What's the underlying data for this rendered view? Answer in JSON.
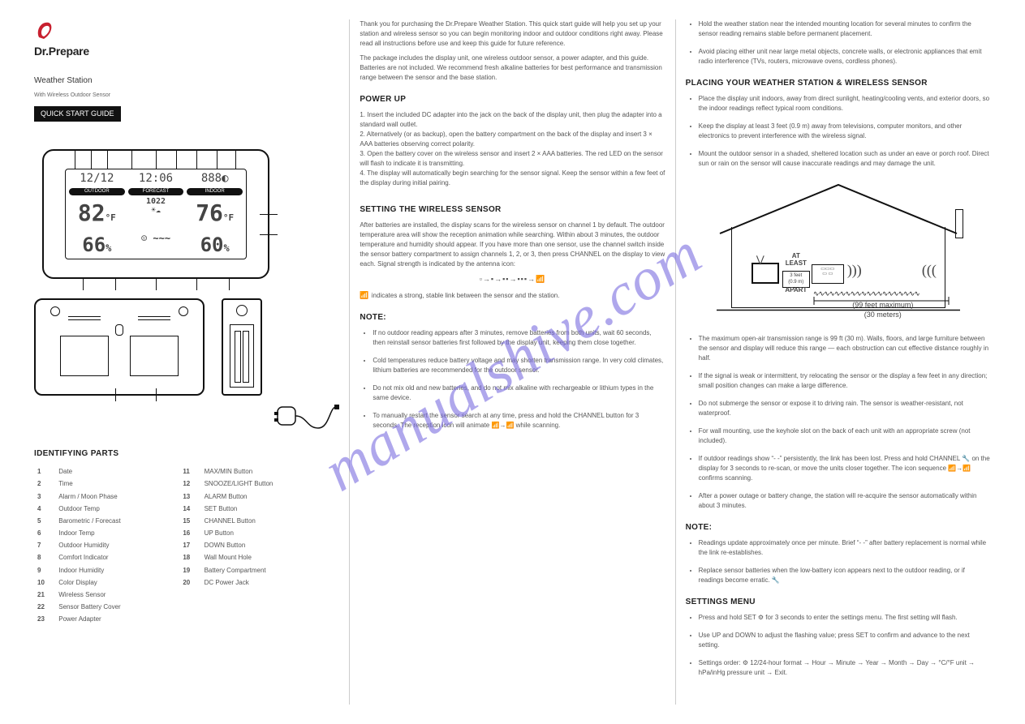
{
  "logo": {
    "brand": "Dr.Prepare",
    "mark_color": "#c8202f"
  },
  "col1": {
    "product_line1": "Weather Station",
    "product_line2": "With Wireless Outdoor Sensor",
    "black_bar": "QUICK START GUIDE",
    "lcd": {
      "date": "12/12",
      "time": "12:06",
      "icon_code": "888",
      "out_label": "OUTDOOR",
      "fc_label": "FORECAST",
      "in_label": "INDOOR",
      "out_temp": "82",
      "out_unit": "°F",
      "baro": "1022",
      "in_temp": "76",
      "in_unit": "°F",
      "out_hum": "66",
      "in_hum": "60",
      "pct": "%"
    },
    "section_parts": "IDENTIFYING PARTS",
    "parts": [
      [
        "1",
        "Date",
        "11",
        "MAX/MIN Button"
      ],
      [
        "2",
        "Time",
        "12",
        "SNOOZE/LIGHT Button"
      ],
      [
        "3",
        "Alarm / Moon Phase",
        "13",
        "ALARM Button"
      ],
      [
        "4",
        "Outdoor Temp",
        "14",
        "SET Button"
      ],
      [
        "5",
        "Barometric / Forecast",
        "15",
        "CHANNEL Button"
      ],
      [
        "6",
        "Indoor Temp",
        "16",
        "UP Button"
      ],
      [
        "7",
        "Outdoor Humidity",
        "17",
        "DOWN Button"
      ],
      [
        "8",
        "Comfort Indicator",
        "18",
        "Wall Mount Hole"
      ],
      [
        "9",
        "Indoor Humidity",
        "19",
        "Battery Compartment"
      ],
      [
        "10",
        "Color Display",
        "20",
        "DC Power Jack"
      ]
    ],
    "parts_extra": [
      [
        "21",
        "Wireless Sensor",
        "",
        ""
      ],
      [
        "22",
        "Sensor Battery Cover",
        "",
        ""
      ],
      [
        "23",
        "Power Adapter",
        "",
        ""
      ]
    ]
  },
  "col2": {
    "intro1": "Thank you for purchasing the Dr.Prepare Weather Station. This quick start guide will help you set up your station and wireless sensor so you can begin monitoring indoor and outdoor conditions right away. Please read all instructions before use and keep this guide for future reference.",
    "intro2": "The package includes the display unit, one wireless outdoor sensor, a power adapter, and this guide. Batteries are not included. We recommend fresh alkaline batteries for best performance and transmission range between the sensor and the base station.",
    "head_power": "POWER UP",
    "power_steps": "1. Insert the included DC adapter into the jack on the back of the display unit, then plug the adapter into a standard wall outlet.\n2. Alternatively (or as backup), open the battery compartment on the back of the display and insert 3 × AAA batteries observing correct polarity.\n3. Open the battery cover on the wireless sensor and insert 2 × AAA batteries. The red LED on the sensor will flash to indicate it is transmitting.\n4. The display will automatically begin searching for the sensor signal. Keep the sensor within a few feet of the display during initial pairing.",
    "head_sensor": "SETTING THE WIRELESS SENSOR",
    "sensor_body": "After batteries are installed, the display scans for the wireless sensor on channel 1 by default. The outdoor temperature area will show the reception animation while searching. Within about 3 minutes, the outdoor temperature and humidity should appear. If you have more than one sensor, use the channel switch inside the sensor battery compartment to assign channels 1, 2, or 3, then press CHANNEL on the display to view each. Signal strength is indicated by the antenna icon:",
    "signal_seq": "▫→▪→▪▪→▪▪▪→📶",
    "signal_full": "📶",
    "signal_tail": " indicates a strong, stable link between the sensor and the station.",
    "head_note": "NOTE:",
    "notes": [
      "If no outdoor reading appears after 3 minutes, remove batteries from both units, wait 60 seconds, then reinstall sensor batteries first followed by the display unit, keeping them close together.",
      "Cold temperatures reduce battery voltage and may shorten transmission range. In very cold climates, lithium batteries are recommended for the outdoor sensor.",
      "Do not mix old and new batteries, and do not mix alkaline with rechargeable or lithium types in the same device.",
      "To manually restart the sensor search at any time, press and hold the CHANNEL button for 3 seconds. The reception icon will animate 📶→📶 while scanning."
    ]
  },
  "col3": {
    "top_bullets": [
      "Hold the weather station near the intended mounting location for several minutes to confirm the sensor reading remains stable before permanent placement.",
      "Avoid placing either unit near large metal objects, concrete walls, or electronic appliances that emit radio interference (TVs, routers, microwave ovens, cordless phones)."
    ],
    "head_placing": "PLACING YOUR WEATHER STATION & WIRELESS SENSOR",
    "placing_bullets": [
      "Place the display unit indoors, away from direct sunlight, heating/cooling vents, and exterior doors, so the indoor readings reflect typical room conditions.",
      "Keep the display at least 3 feet (0.9 m) away from televisions, computer monitors, and other electronics to prevent interference with the wireless signal.",
      "Mount the outdoor sensor in a shaded, sheltered location such as under an eave or porch roof. Direct sun or rain on the sensor will cause inaccurate readings and may damage the unit."
    ],
    "diagram": {
      "at_least": "AT\nLEAST",
      "gap": "3 feet\n(0.9 m)",
      "apart": "APART",
      "range1": "(99 feet maximum)",
      "range2": "(30 meters)"
    },
    "after_diagram": [
      "The maximum open-air transmission range is 99 ft (30 m). Walls, floors, and large furniture between the sensor and display will reduce this range — each obstruction can cut effective distance roughly in half.",
      "If the signal is weak or intermittent, try relocating the sensor or the display a few feet in any direction; small position changes can make a large difference.",
      "Do not submerge the sensor or expose it to driving rain. The sensor is weather-resistant, not waterproof.",
      "For wall mounting, use the keyhole slot on the back of each unit with an appropriate screw (not included).",
      "If outdoor readings show “- -” persistently, the link has been lost. Press and hold CHANNEL 🔧 on the display for 3 seconds to re-scan, or move the units closer together. The icon sequence 📶→📶 confirms scanning.",
      "After a power outage or battery change, the station will re-acquire the sensor automatically within about 3 minutes."
    ],
    "head_note2": "NOTE:",
    "note2": [
      "Readings update approximately once per minute. Brief “- -” after battery replacement is normal while the link re-establishes.",
      "Replace sensor batteries when the low-battery icon appears next to the outdoor reading, or if readings become erratic. 🔧"
    ],
    "head_settings": "SETTINGS MENU",
    "settings": [
      "Press and hold SET ⚙ for 3 seconds to enter the settings menu. The first setting will flash.",
      "Use UP and DOWN to adjust the flashing value; press SET to confirm and advance to the next setting.",
      "Settings order: ⚙ 12/24-hour format → Hour → Minute → Year → Month → Day → °C/°F unit → hPa/inHg pressure unit → Exit."
    ]
  },
  "watermark": "manualshive.com"
}
